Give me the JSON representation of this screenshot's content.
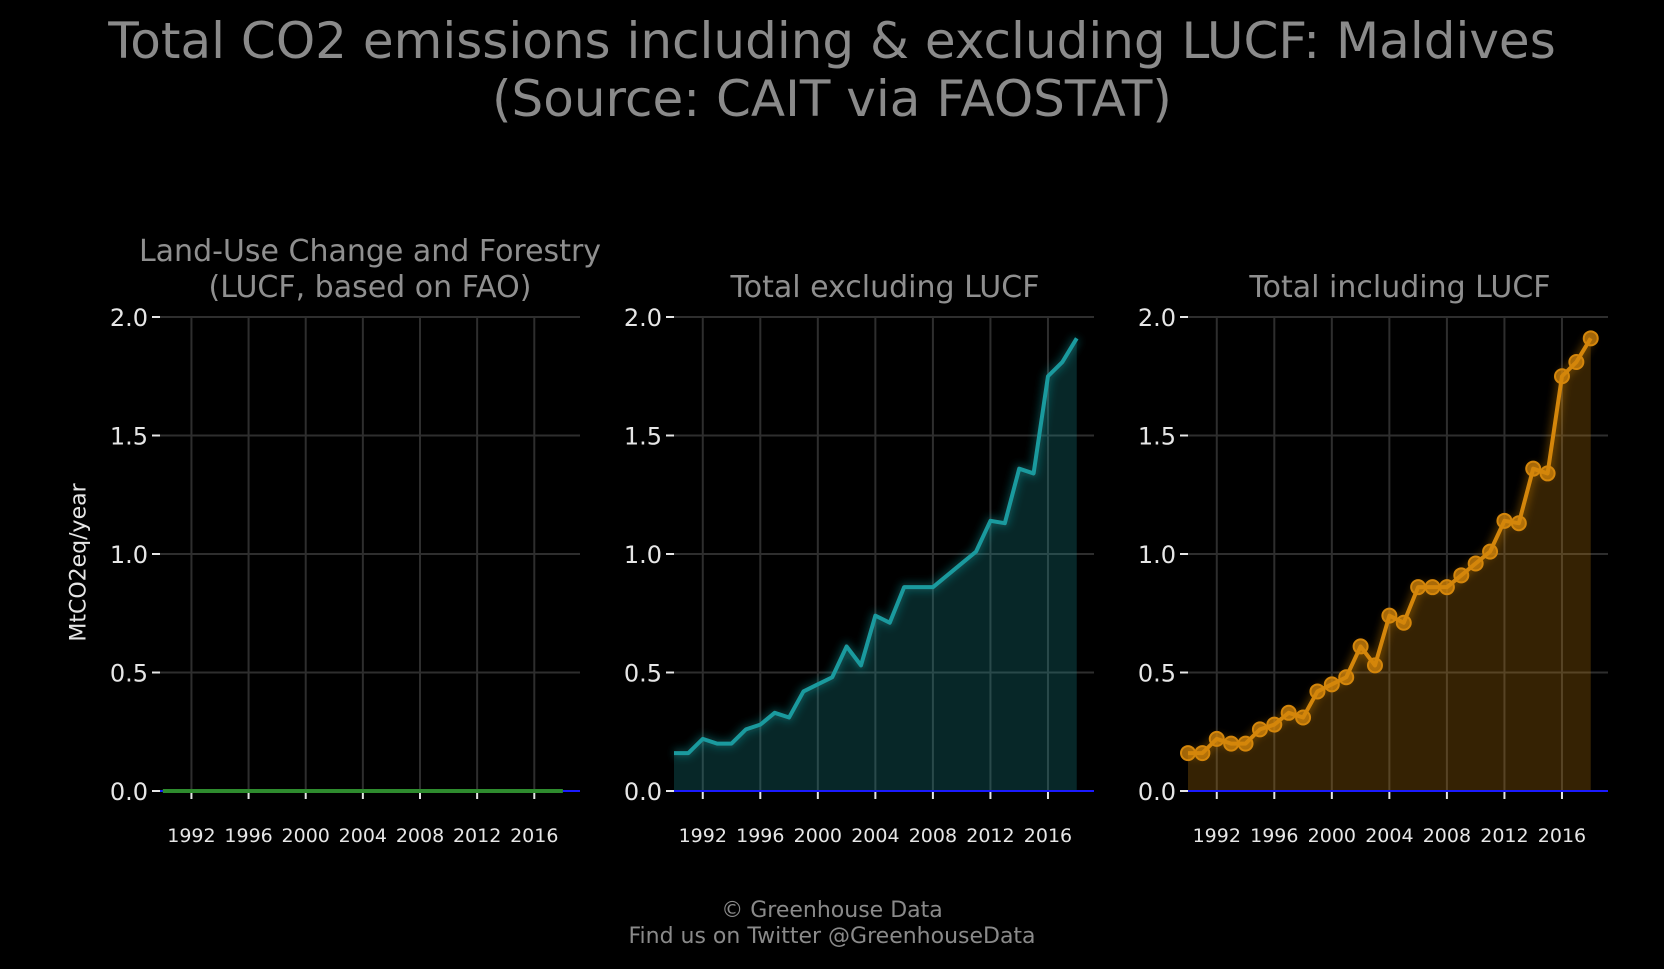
{
  "title_line1": "Total CO2 emissions including & excluding LUCF: Maldives",
  "title_line2": "(Source: CAIT via FAOSTAT)",
  "ylabel": "MtCO2eq/year",
  "footer": {
    "line1": "© Greenhouse Data",
    "line2": "Find us on Twitter @GreenhouseData"
  },
  "colors": {
    "background": "#000000",
    "grid": "#2e2e2e",
    "zero_line": "#1a1aff",
    "lucf": "#2e8b2e",
    "excluding": "#1a9a9e",
    "including": "#d4860b"
  },
  "chart_data": [
    {
      "type": "area",
      "title_line1": "Land-Use Change and Forestry",
      "title_line2": "(LUCF, based on FAO)",
      "x": [
        1990,
        1991,
        1992,
        1993,
        1994,
        1995,
        1996,
        1997,
        1998,
        1999,
        2000,
        2001,
        2002,
        2003,
        2004,
        2005,
        2006,
        2007,
        2008,
        2009,
        2010,
        2011,
        2012,
        2013,
        2014,
        2015,
        2016,
        2017,
        2018
      ],
      "y": [
        0,
        0,
        0,
        0,
        0,
        0,
        0,
        0,
        0,
        0,
        0,
        0,
        0,
        0,
        0,
        0,
        0,
        0,
        0,
        0,
        0,
        0,
        0,
        0,
        0,
        0,
        0,
        0,
        0
      ],
      "xticks": [
        1992,
        1996,
        2000,
        2004,
        2008,
        2012,
        2016
      ],
      "yticks": [
        "0.0",
        "0.5",
        "1.0",
        "1.5",
        "2.0"
      ],
      "ylim": [
        0,
        2.0
      ],
      "xlim": [
        1989.8,
        2019.2
      ],
      "color_key": "lucf",
      "markers": false
    },
    {
      "type": "area",
      "title_line1": "",
      "title_line2": "Total excluding LUCF",
      "x": [
        1990,
        1991,
        1992,
        1993,
        1994,
        1995,
        1996,
        1997,
        1998,
        1999,
        2000,
        2001,
        2002,
        2003,
        2004,
        2005,
        2006,
        2007,
        2008,
        2009,
        2010,
        2011,
        2012,
        2013,
        2014,
        2015,
        2016,
        2017,
        2018
      ],
      "y": [
        0.16,
        0.16,
        0.22,
        0.2,
        0.2,
        0.26,
        0.28,
        0.33,
        0.31,
        0.42,
        0.45,
        0.48,
        0.61,
        0.53,
        0.74,
        0.71,
        0.86,
        0.86,
        0.86,
        0.91,
        0.96,
        1.01,
        1.14,
        1.13,
        1.36,
        1.34,
        1.75,
        1.81,
        1.91
      ],
      "xticks": [
        1992,
        1996,
        2000,
        2004,
        2008,
        2012,
        2016
      ],
      "yticks": [
        "0.0",
        "0.5",
        "1.0",
        "1.5",
        "2.0"
      ],
      "ylim": [
        0,
        2.0
      ],
      "xlim": [
        1990,
        2019.2
      ],
      "color_key": "excluding",
      "markers": false
    },
    {
      "type": "area",
      "title_line1": "",
      "title_line2": "Total including LUCF",
      "x": [
        1990,
        1991,
        1992,
        1993,
        1994,
        1995,
        1996,
        1997,
        1998,
        1999,
        2000,
        2001,
        2002,
        2003,
        2004,
        2005,
        2006,
        2007,
        2008,
        2009,
        2010,
        2011,
        2012,
        2013,
        2014,
        2015,
        2016,
        2017,
        2018
      ],
      "y": [
        0.16,
        0.16,
        0.22,
        0.2,
        0.2,
        0.26,
        0.28,
        0.33,
        0.31,
        0.42,
        0.45,
        0.48,
        0.61,
        0.53,
        0.74,
        0.71,
        0.86,
        0.86,
        0.86,
        0.91,
        0.96,
        1.01,
        1.14,
        1.13,
        1.36,
        1.34,
        1.75,
        1.81,
        1.91
      ],
      "xticks": [
        1992,
        1996,
        2000,
        2004,
        2008,
        2012,
        2016
      ],
      "yticks": [
        "0.0",
        "0.5",
        "1.0",
        "1.5",
        "2.0"
      ],
      "ylim": [
        0,
        2.0
      ],
      "xlim": [
        1990,
        2019.2
      ],
      "color_key": "including",
      "markers": true
    }
  ]
}
